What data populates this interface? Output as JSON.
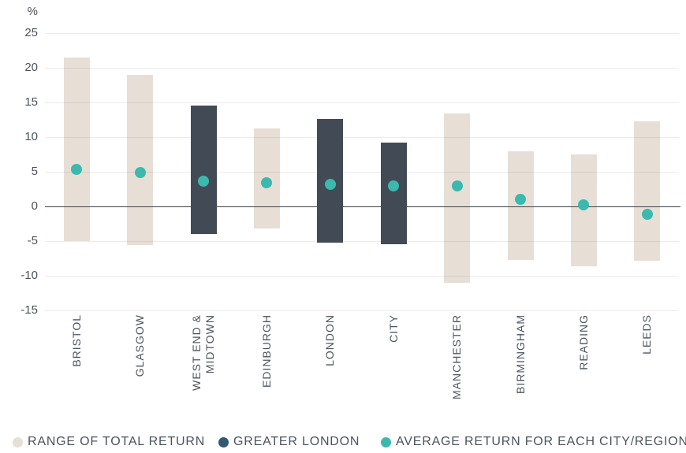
{
  "colors": {
    "background": "#ffffff",
    "range_bar": "#e7dfd5",
    "greater_london_bar": "#424b55",
    "average_dot": "#3ab9af",
    "greater_london_legend_dot": "#35596e",
    "axis_text": "#4b545e",
    "gridline": "#ececec",
    "zero_line": "#3c4147"
  },
  "chart_data": {
    "type": "bar",
    "subtype": "floating-range-bars-with-average-dot-markers",
    "title": "",
    "xlabel": "",
    "ylabel": "%",
    "ylim": [
      -15,
      25
    ],
    "yticks": [
      25,
      20,
      15,
      10,
      5,
      0,
      -5,
      -10,
      -15
    ],
    "grid": true,
    "legend_position": "bottom",
    "categories": [
      "BRISTOL",
      "GLASGOW",
      "WEST END & MIDTOWN",
      "EDINBURGH",
      "LONDON",
      "CITY",
      "MANCHESTER",
      "BIRMINGHAM",
      "READING",
      "LEEDS"
    ],
    "category_label_lines": [
      [
        "BRISTOL"
      ],
      [
        "GLASGOW"
      ],
      [
        "WEST END &",
        "MIDTOWN"
      ],
      [
        "EDINBURGH"
      ],
      [
        "LONDON"
      ],
      [
        "CITY"
      ],
      [
        "MANCHESTER"
      ],
      [
        "BIRMINGHAM"
      ],
      [
        "READING"
      ],
      [
        "LEEDS"
      ]
    ],
    "is_greater_london": [
      false,
      false,
      true,
      false,
      true,
      true,
      false,
      false,
      false,
      false
    ],
    "series": [
      {
        "name": "RANGE OF TOTAL RETURN",
        "type": "range",
        "high": [
          21.5,
          19.0,
          14.5,
          11.3,
          12.6,
          9.2,
          13.4,
          7.9,
          7.5,
          12.3
        ],
        "low": [
          -5.0,
          -5.6,
          -4.0,
          -3.2,
          -5.2,
          -5.5,
          -11.0,
          -7.7,
          -8.6,
          -7.8
        ]
      },
      {
        "name": "GREATER LONDON",
        "type": "range-highlight",
        "applies_to": [
          "WEST END & MIDTOWN",
          "LONDON",
          "CITY"
        ]
      },
      {
        "name": "AVERAGE RETURN FOR EACH CITY/REGION",
        "type": "point",
        "values": [
          5.3,
          4.9,
          3.6,
          3.4,
          3.2,
          2.9,
          2.9,
          1.0,
          0.2,
          -1.1
        ]
      }
    ]
  }
}
